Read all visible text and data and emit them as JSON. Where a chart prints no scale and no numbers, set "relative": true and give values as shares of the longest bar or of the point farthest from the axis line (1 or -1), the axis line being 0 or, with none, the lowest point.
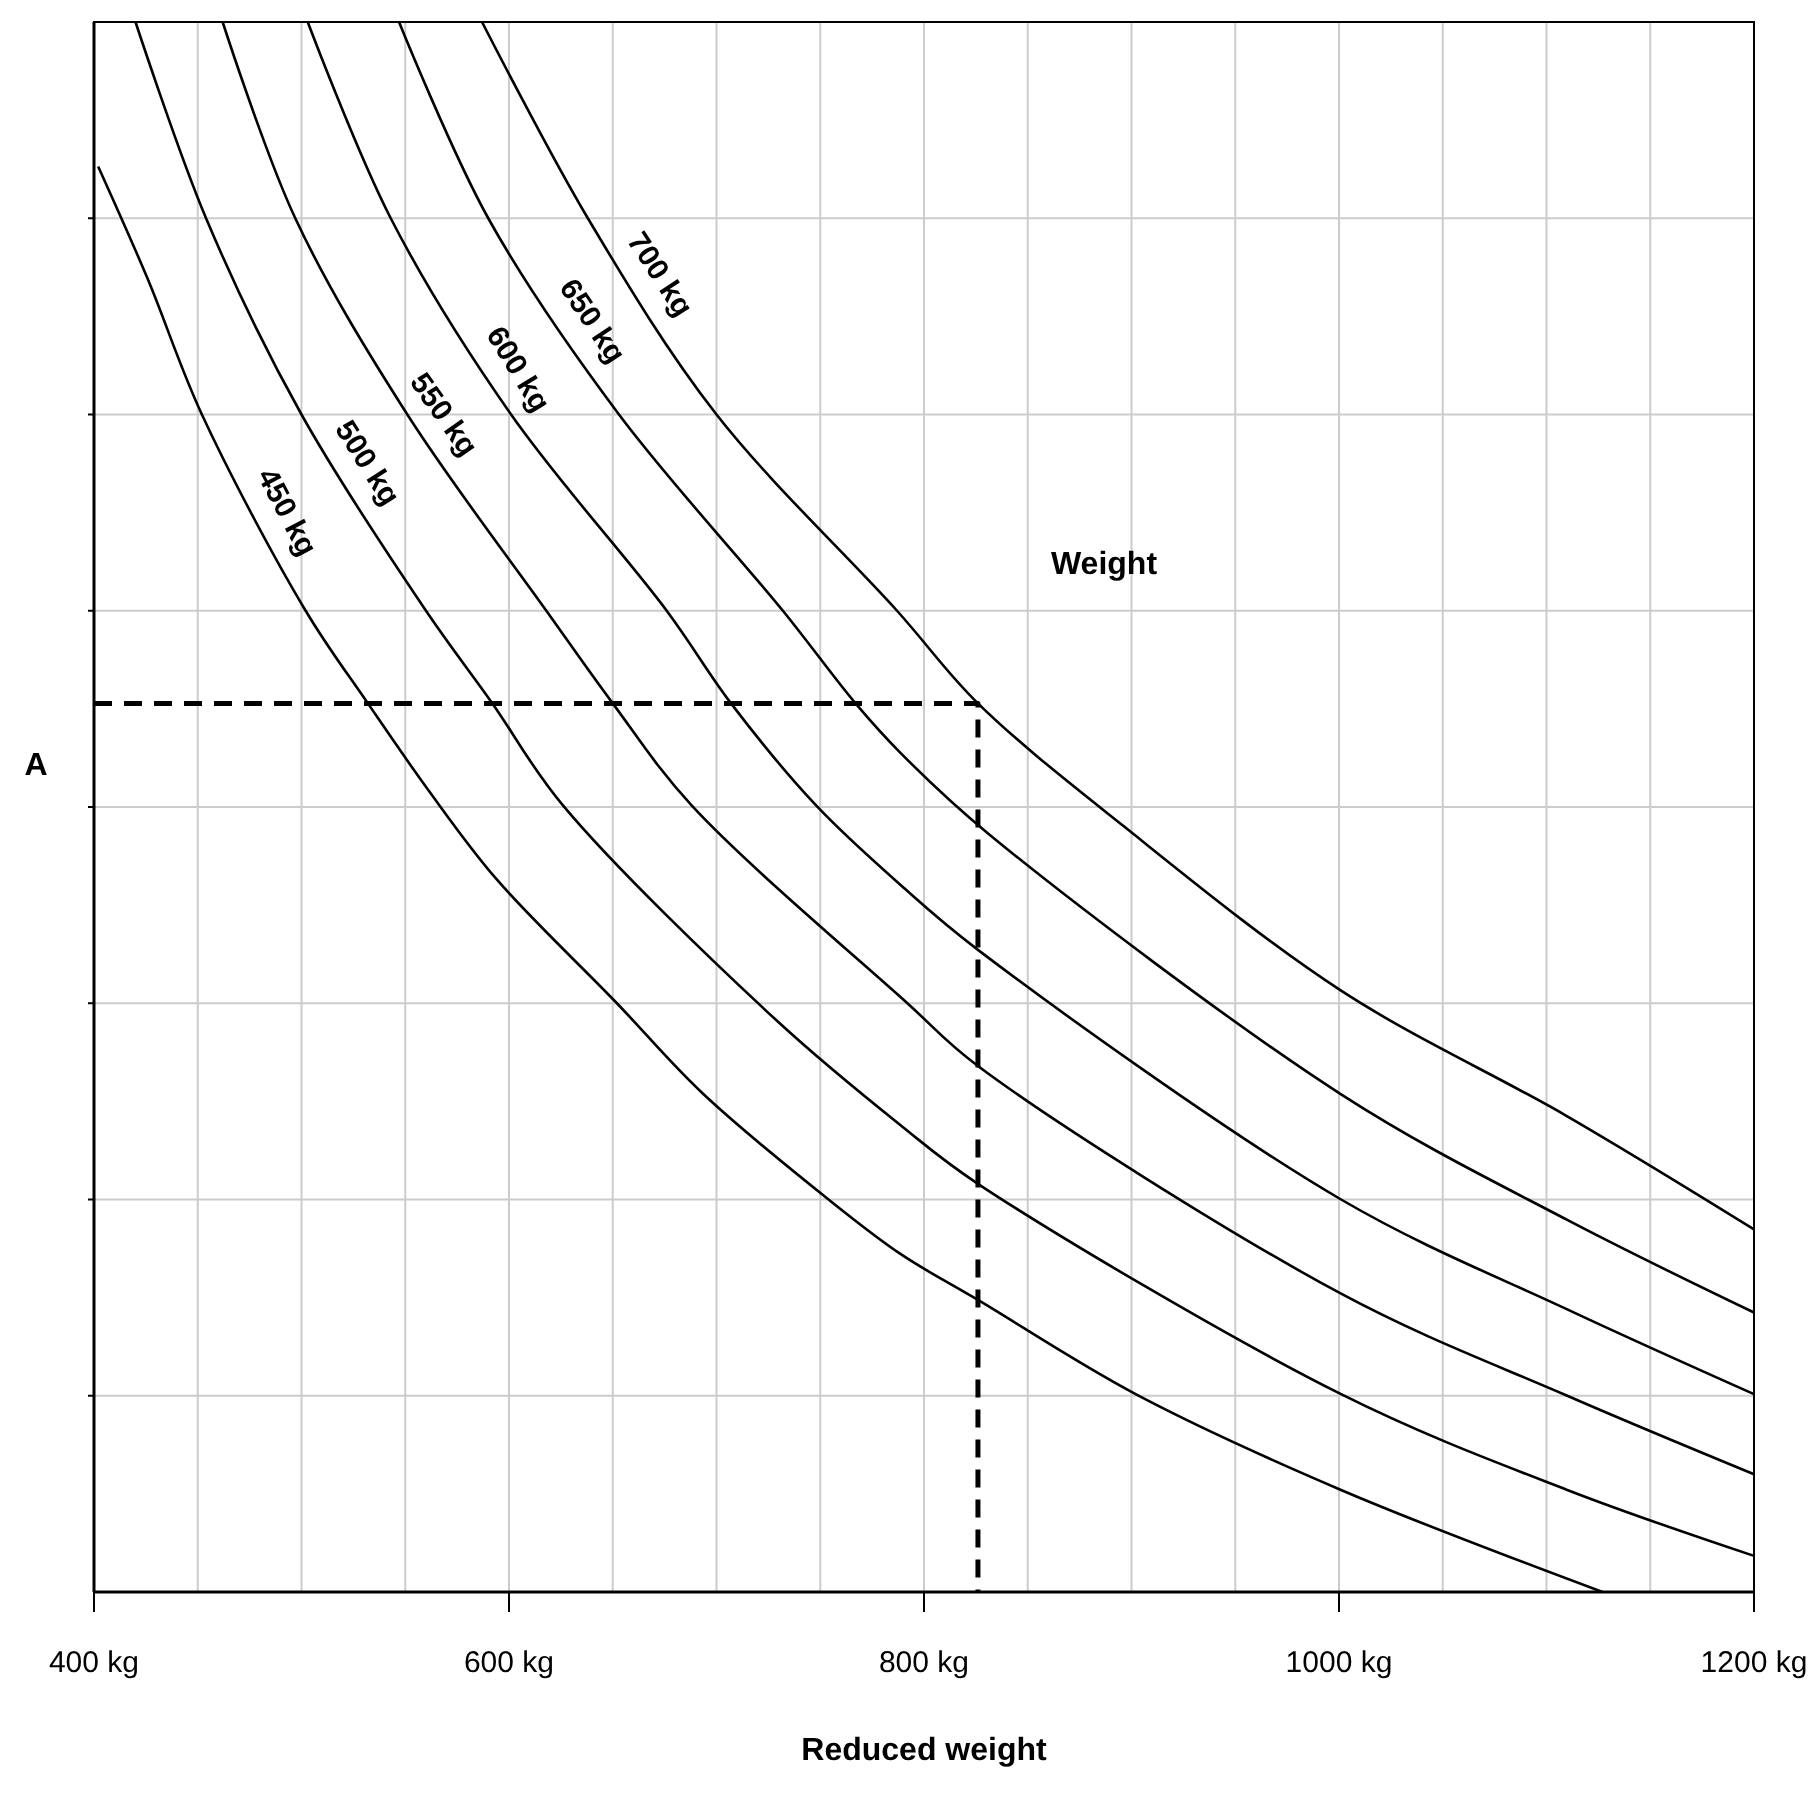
{
  "chart_data": {
    "type": "line",
    "relative": true,
    "xlabel": "Reduced weight",
    "xlim": [
      400,
      1200
    ],
    "xticks": [
      {
        "value": 400,
        "label": "400 kg"
      },
      {
        "value": 600,
        "label": "600 kg"
      },
      {
        "value": 800,
        "label": "800 kg"
      },
      {
        "value": 1000,
        "label": "1000 kg"
      },
      {
        "value": 1200,
        "label": "1200 kg"
      }
    ],
    "grid": true,
    "line_style": "solid",
    "annotations": [
      "Weight",
      {
        "text": "A",
        "x": 400,
        "y": 0.566
      }
    ],
    "series": [
      {
        "name": "450 kg",
        "color": "#000000",
        "x": [
          402,
          426,
          452,
          502,
          532,
          561,
          594,
          652,
          693,
          754,
          789,
          826,
          902,
          1001,
          1127
        ],
        "values": [
          0.908,
          0.836,
          0.75,
          0.625,
          0.566,
          0.511,
          0.454,
          0.375,
          0.318,
          0.25,
          0.215,
          0.186,
          0.126,
          0.065,
          0
        ]
      },
      {
        "name": "500 kg",
        "color": "#000000",
        "x": [
          420,
          454,
          500,
          560,
          592,
          626,
          729,
          789,
          826,
          1001,
          1110,
          1200
        ],
        "values": [
          1,
          0.875,
          0.75,
          0.625,
          0.566,
          0.501,
          0.364,
          0.297,
          0.26,
          0.126,
          0.065,
          0.023
        ]
      },
      {
        "name": "550 kg",
        "color": "#000000",
        "x": [
          462,
          497,
          551,
          618,
          650,
          688,
          792,
          826,
          1001,
          1110,
          1200
        ],
        "values": [
          1,
          0.875,
          0.75,
          0.625,
          0.566,
          0.501,
          0.375,
          0.335,
          0.19,
          0.125,
          0.075
        ]
      },
      {
        "name": "600 kg",
        "color": "#000000",
        "x": [
          503,
          543,
          601,
          676,
          707,
          748,
          789,
          826,
          1001,
          1110,
          1200
        ],
        "values": [
          1,
          0.875,
          0.75,
          0.625,
          0.566,
          0.501,
          0.45,
          0.409,
          0.25,
          0.18,
          0.126
        ]
      },
      {
        "name": "650 kg",
        "color": "#000000",
        "x": [
          547,
          590,
          653,
          732,
          767,
          789,
          831,
          1001,
          1110,
          1200
        ],
        "values": [
          1,
          0.875,
          0.75,
          0.625,
          0.566,
          0.534,
          0.483,
          0.317,
          0.237,
          0.178
        ]
      },
      {
        "name": "700 kg",
        "color": "#000000",
        "x": [
          587,
          638,
          700,
          787,
          826,
          896,
          1001,
          1110,
          1200
        ],
        "values": [
          1,
          0.875,
          0.75,
          0.625,
          0.566,
          0.488,
          0.383,
          0.303,
          0.231
        ]
      },
      {
        "color": "#000000",
        "line_style": "dashed",
        "x": [
          400,
          826,
          826
        ],
        "values": [
          0.566,
          0.566,
          0
        ]
      }
    ]
  }
}
